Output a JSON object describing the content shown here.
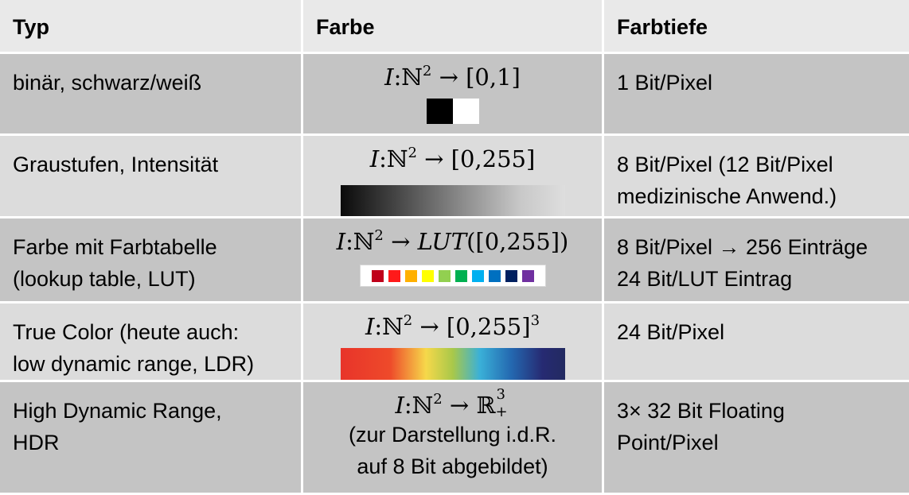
{
  "headers": [
    "Typ",
    "Farbe",
    "Farbtiefe"
  ],
  "rows": [
    {
      "typ_lines": [
        "binär, schwarz/weiß"
      ],
      "formula": {
        "prefix": "I",
        "colon": ":",
        "domain": "ℕ",
        "exp": "2",
        "arrow": "→",
        "target": "[0,1]",
        "target_exp": ""
      },
      "depth_lines": [
        "1 Bit/Pixel"
      ]
    },
    {
      "typ_lines": [
        "Graustufen, Intensität"
      ],
      "formula": {
        "prefix": "I",
        "colon": ":",
        "domain": "ℕ",
        "exp": "2",
        "arrow": "→",
        "target": "[0,255]",
        "target_exp": ""
      },
      "depth_lines": [
        "8 Bit/Pixel (12 Bit/Pixel",
        "medizinische Anwend.)"
      ]
    },
    {
      "typ_lines": [
        "Farbe mit Farbtabelle",
        "(lookup table, LUT)"
      ],
      "formula": {
        "prefix": "I",
        "colon": ":",
        "domain": "ℕ",
        "exp": "2",
        "arrow": "→",
        "target_it": "LUT",
        "target": "([0,255])",
        "target_exp": ""
      },
      "depth_lines": [
        "8 Bit/Pixel → 256 Einträge",
        "24 Bit/LUT Eintrag"
      ]
    },
    {
      "typ_lines": [
        "True Color (heute auch:",
        "low dynamic range, LDR)"
      ],
      "formula": {
        "prefix": "I",
        "colon": ":",
        "domain": "ℕ",
        "exp": "2",
        "arrow": "→",
        "target": "[0,255]",
        "target_exp": "3"
      },
      "depth_lines": [
        "24 Bit/Pixel"
      ]
    },
    {
      "typ_lines": [
        "High Dynamic Range,",
        "HDR"
      ],
      "formula": {
        "prefix": "I",
        "colon": ":",
        "domain": "ℕ",
        "exp": "2",
        "arrow": "→",
        "target": "ℝ",
        "target_sup": "3",
        "target_sub": "+"
      },
      "note_lines": [
        "(zur Darstellung i.d.R.",
        "auf 8 Bit abgebildet)"
      ],
      "depth_lines": [
        "3× 32 Bit Floating",
        "Point/Pixel"
      ]
    }
  ],
  "lut_colors": [
    "#c0001a",
    "#ff1a1a",
    "#ffb000",
    "#ffff00",
    "#92d050",
    "#00b050",
    "#00b0f0",
    "#0070c0",
    "#002060",
    "#7030a0"
  ],
  "gray_ramp": [
    "#0a0a0a",
    "#dedede"
  ],
  "spectrum_colors": [
    "#e8342a",
    "#f6d84a",
    "#3ab0d8",
    "#262a72"
  ]
}
